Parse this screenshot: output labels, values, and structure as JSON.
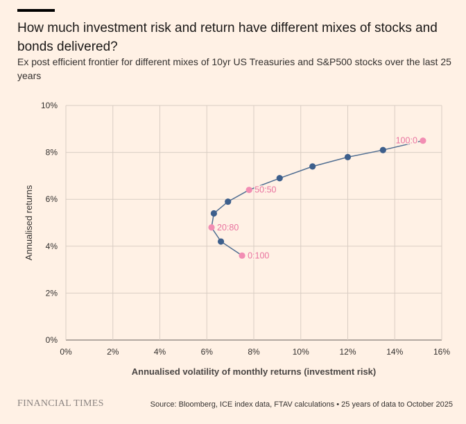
{
  "header": {
    "title": "How much investment risk and return have different mixes of stocks and bonds delivered?",
    "subtitle": "Ex post efficient frontier for different mixes of 10yr US Treasuries and S&P500 stocks over the last 25 years"
  },
  "footer": {
    "brand": "FINANCIAL TIMES",
    "source": "Source: Bloomberg, ICE index data, FTAV calculations • 25 years of data to October 2025"
  },
  "colors": {
    "background": "#fff1e5",
    "grid": "#d9cdc3",
    "line": "#4f6d91",
    "marker": "#3d5f8c",
    "highlight": "#f28db3",
    "highlight_text": "#e9739f"
  },
  "chart_data": {
    "type": "line",
    "title": "How much investment risk and return have different mixes of stocks and bonds delivered?",
    "xlabel": "Annualised volatility of monthly returns (investment risk)",
    "ylabel": "Annualised returns",
    "xlim": [
      0,
      16
    ],
    "ylim": [
      0,
      10
    ],
    "xticks": [
      0,
      2,
      4,
      6,
      8,
      10,
      12,
      14,
      16
    ],
    "yticks": [
      0,
      2,
      4,
      6,
      8,
      10
    ],
    "xtick_labels": [
      "0%",
      "2%",
      "4%",
      "6%",
      "8%",
      "10%",
      "12%",
      "14%",
      "16%"
    ],
    "ytick_labels": [
      "0%",
      "2%",
      "4%",
      "6%",
      "8%",
      "10%"
    ],
    "grid": true,
    "series": [
      {
        "name": "Efficient frontier",
        "points": [
          {
            "x": 7.5,
            "y": 3.6,
            "label": "0:100",
            "highlight": true
          },
          {
            "x": 6.6,
            "y": 4.2,
            "label": "",
            "highlight": false
          },
          {
            "x": 6.2,
            "y": 4.8,
            "label": "20:80",
            "highlight": true
          },
          {
            "x": 6.3,
            "y": 5.4,
            "label": "",
            "highlight": false
          },
          {
            "x": 6.9,
            "y": 5.9,
            "label": "",
            "highlight": false
          },
          {
            "x": 7.8,
            "y": 6.4,
            "label": "50:50",
            "highlight": true
          },
          {
            "x": 9.1,
            "y": 6.9,
            "label": "",
            "highlight": false
          },
          {
            "x": 10.5,
            "y": 7.4,
            "label": "",
            "highlight": false
          },
          {
            "x": 12.0,
            "y": 7.8,
            "label": "",
            "highlight": false
          },
          {
            "x": 13.5,
            "y": 8.1,
            "label": "",
            "highlight": false
          },
          {
            "x": 15.2,
            "y": 8.5,
            "label": "100:0",
            "highlight": true
          }
        ]
      }
    ]
  }
}
